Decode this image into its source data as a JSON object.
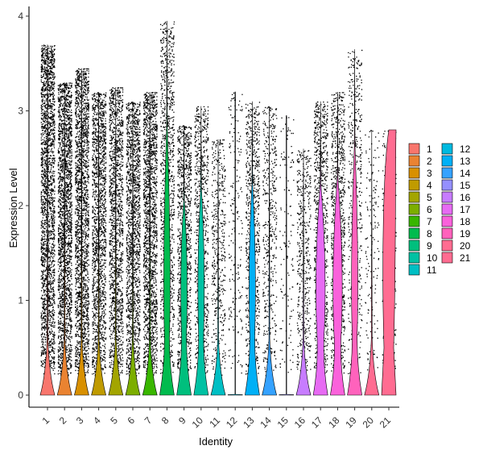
{
  "chart_data": {
    "type": "violin",
    "xlabel": "Identity",
    "ylabel": "Expression Level",
    "ylim": [
      0,
      4.0
    ],
    "yticks": [
      0,
      1,
      2,
      3,
      4
    ],
    "categories": [
      "1",
      "2",
      "3",
      "4",
      "5",
      "6",
      "7",
      "8",
      "9",
      "10",
      "11",
      "12",
      "13",
      "14",
      "15",
      "16",
      "17",
      "18",
      "19",
      "20",
      "21"
    ],
    "colors": [
      "#F8766D",
      "#EA8331",
      "#D89000",
      "#C09B00",
      "#A3A500",
      "#7CAE00",
      "#39B600",
      "#00BB4E",
      "#00BF7D",
      "#00C1A3",
      "#00BFC4",
      "#00BAE0",
      "#00B0F6",
      "#35A2FF",
      "#9590FF",
      "#C77CFF",
      "#E76BF3",
      "#FA62DB",
      "#FF62BC",
      "#FF6C91",
      "#FF6C91"
    ],
    "max_values": [
      3.7,
      3.3,
      3.45,
      3.2,
      3.25,
      3.1,
      3.2,
      3.95,
      2.85,
      3.05,
      2.7,
      3.2,
      3.1,
      3.05,
      2.95,
      2.6,
      3.1,
      3.2,
      3.65,
      2.8,
      2.8
    ],
    "point_density": [
      1.0,
      0.95,
      0.9,
      0.7,
      0.65,
      0.7,
      0.75,
      0.45,
      0.45,
      0.35,
      0.2,
      0.08,
      0.35,
      0.2,
      0.05,
      0.2,
      0.4,
      0.4,
      0.2,
      0.06,
      0.1
    ],
    "legend": {
      "position": "right",
      "columns": 2
    }
  }
}
